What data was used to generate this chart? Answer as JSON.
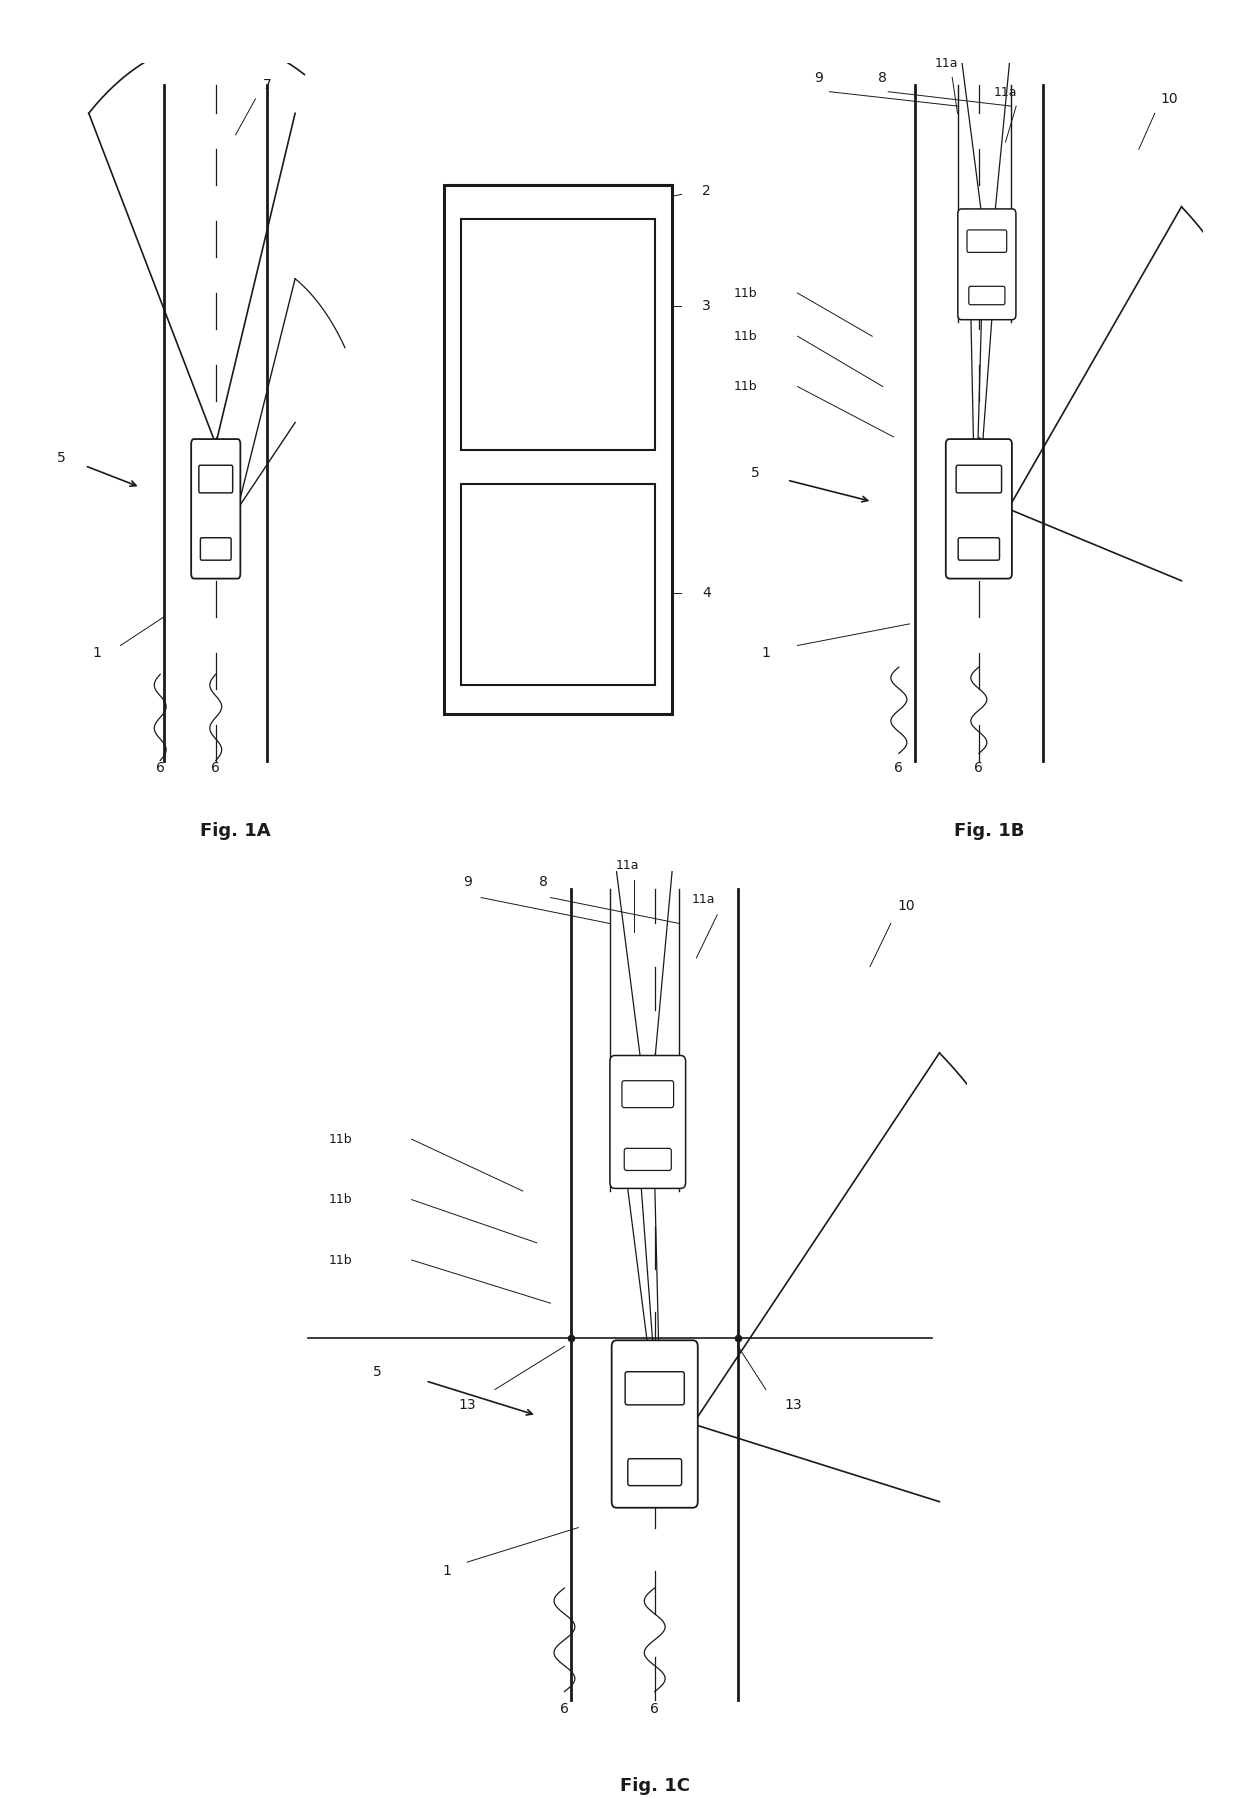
{
  "background_color": "#ffffff",
  "fig_labels": [
    "Fig. 1A",
    "Fig. 1B",
    "Fig. 1C"
  ],
  "line_color": "#1a1a1a",
  "road_line_lw": 1.8,
  "car_lw": 1.2
}
